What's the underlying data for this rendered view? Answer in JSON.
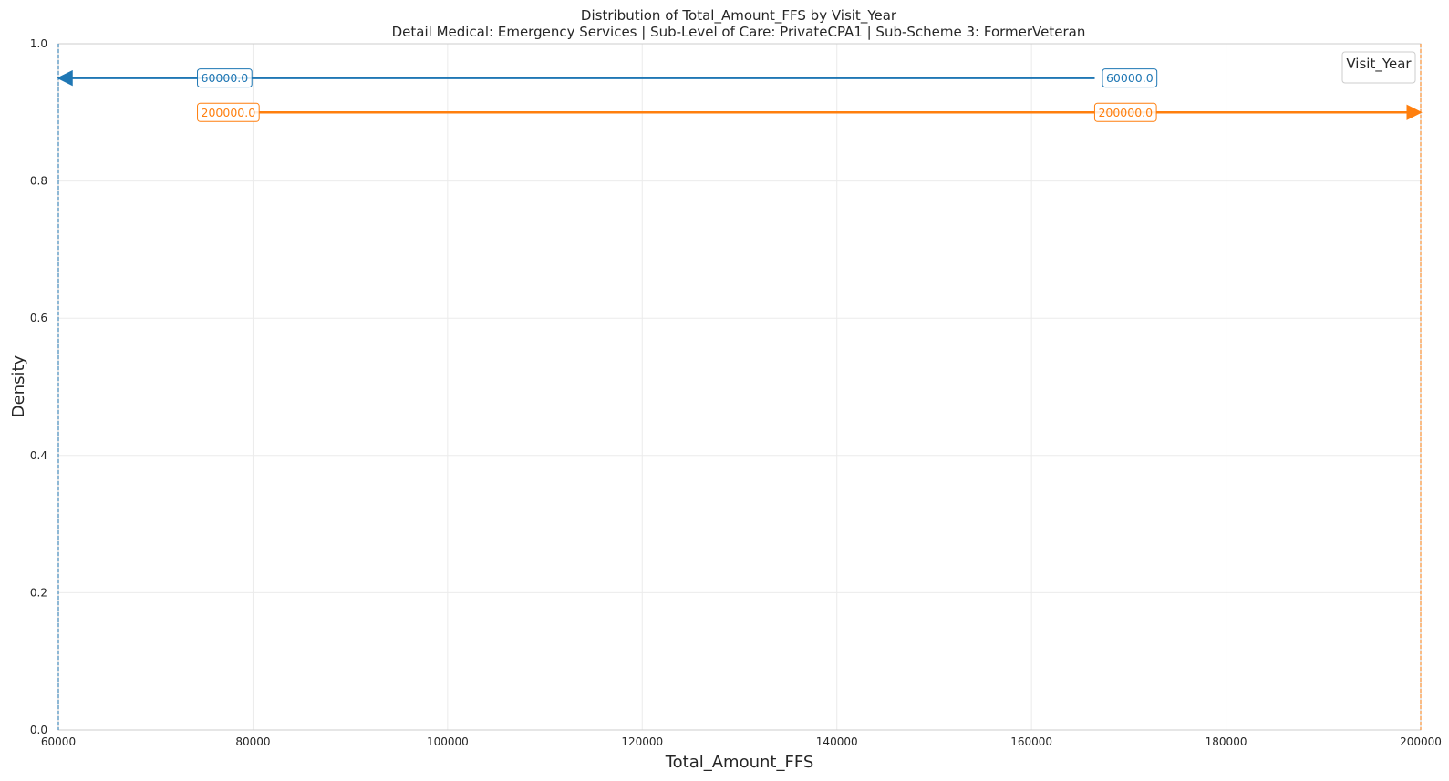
{
  "chart_data": {
    "type": "line",
    "title": "Distribution of Total_Amount_FFS by Visit_Year",
    "subtitle": "Detail Medical: Emergency Services | Sub-Level of Care: PrivateCPA1 | Sub-Scheme 3: FormerVeteran",
    "xlabel": "Total_Amount_FFS",
    "ylabel": "Density",
    "xlim": [
      60000,
      200000
    ],
    "ylim": [
      0.0,
      1.0
    ],
    "x_ticks": [
      "60000",
      "80000",
      "100000",
      "120000",
      "140000",
      "160000",
      "180000",
      "200000"
    ],
    "x_tick_values": [
      60000,
      80000,
      100000,
      120000,
      140000,
      160000,
      180000,
      200000
    ],
    "y_ticks": [
      "0.0",
      "0.2",
      "0.4",
      "0.6",
      "0.8",
      "1.0"
    ],
    "y_tick_values": [
      0.0,
      0.2,
      0.4,
      0.6,
      0.8,
      1.0
    ],
    "grid": true,
    "legend": {
      "title": "Visit_Year",
      "placement": "top-right"
    },
    "series": [
      {
        "color": "#1f77b4",
        "value": 60000,
        "marker_line_x": 60000,
        "arrow": {
          "from_x": 166500,
          "to_x": 60000,
          "y": 0.95
        },
        "labels": [
          {
            "text": "60000.0",
            "x": 74200,
            "y": 0.95
          },
          {
            "text": "60000.0",
            "x": 167200,
            "y": 0.95
          }
        ]
      },
      {
        "color": "#ff7f0e",
        "value": 200000,
        "marker_line_x": 200000,
        "arrow": {
          "from_x": 80000,
          "to_x": 200000,
          "y": 0.9
        },
        "labels": [
          {
            "text": "200000.0",
            "x": 74200,
            "y": 0.9
          },
          {
            "text": "200000.0",
            "x": 166400,
            "y": 0.9
          }
        ]
      }
    ]
  }
}
